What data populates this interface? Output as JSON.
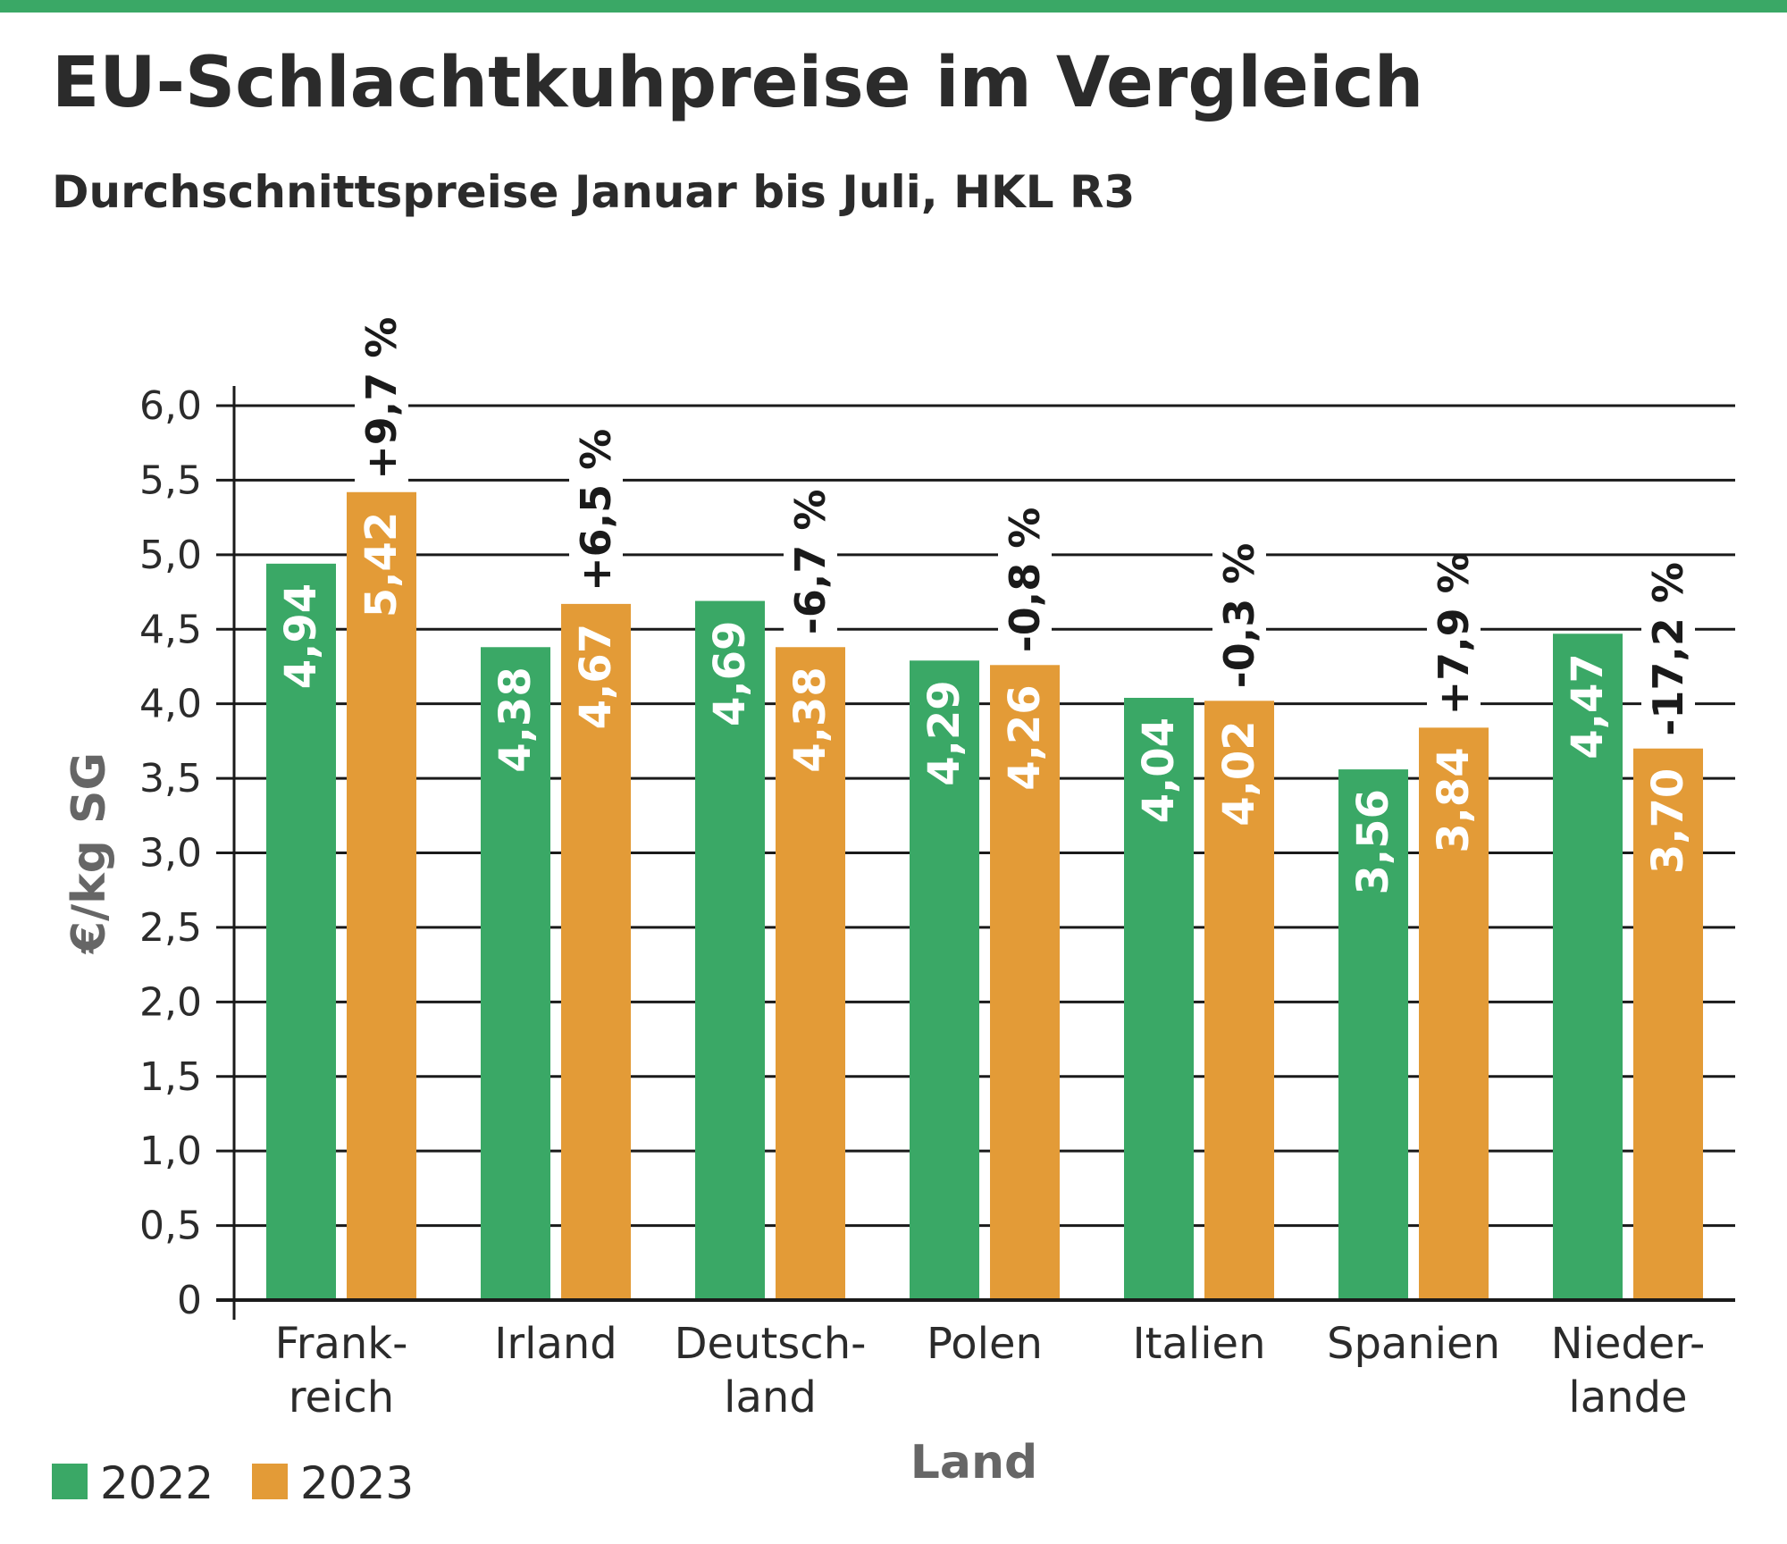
{
  "colors": {
    "top_bar": "#3aa866",
    "series_2022": "#3aa866",
    "series_2023": "#e39b37",
    "text": "#2b2b2b",
    "axis_label": "#666666"
  },
  "chart_data": {
    "type": "bar",
    "title": "EU-Schlachtkuhpreise im Vergleich",
    "subtitle": "Durchschnittspreise Januar bis Juli, HKL R3",
    "xlabel": "Land",
    "ylabel": "€/kg SG",
    "ylim": [
      0,
      6
    ],
    "yticks": [
      {
        "value": 0,
        "label": "0"
      },
      {
        "value": 0.5,
        "label": "0,5"
      },
      {
        "value": 1.0,
        "label": "1,0"
      },
      {
        "value": 1.5,
        "label": "1,5"
      },
      {
        "value": 2.0,
        "label": "2,0"
      },
      {
        "value": 2.5,
        "label": "2,5"
      },
      {
        "value": 3.0,
        "label": "3,0"
      },
      {
        "value": 3.5,
        "label": "3,5"
      },
      {
        "value": 4.0,
        "label": "4,0"
      },
      {
        "value": 4.5,
        "label": "4,5"
      },
      {
        "value": 5.0,
        "label": "5,0"
      },
      {
        "value": 5.5,
        "label": "5,5"
      },
      {
        "value": 6.0,
        "label": "6,0"
      }
    ],
    "grid": true,
    "legend_position": "bottom-left",
    "categories": [
      [
        "Frank-",
        "reich"
      ],
      [
        "Irland"
      ],
      [
        "Deutsch-",
        "land"
      ],
      [
        "Polen"
      ],
      [
        "Italien"
      ],
      [
        "Spanien"
      ],
      [
        "Nieder-",
        "lande"
      ]
    ],
    "series": [
      {
        "name": "2022",
        "values": [
          4.94,
          4.38,
          4.69,
          4.29,
          4.04,
          3.56,
          4.47
        ],
        "labels": [
          "4,94",
          "4,38",
          "4,69",
          "4,29",
          "4,04",
          "3,56",
          "4,47"
        ]
      },
      {
        "name": "2023",
        "values": [
          5.42,
          4.67,
          4.38,
          4.26,
          4.02,
          3.84,
          3.7
        ],
        "labels": [
          "5,42",
          "4,67",
          "4,38",
          "4,26",
          "4,02",
          "3,84",
          "3,70"
        ]
      }
    ],
    "change_labels": [
      "+9,7 %",
      "+6,5 %",
      "-6,7 %",
      "-0,8 %",
      "-0,3 %",
      "+7,9 %",
      "-17,2 %"
    ]
  }
}
